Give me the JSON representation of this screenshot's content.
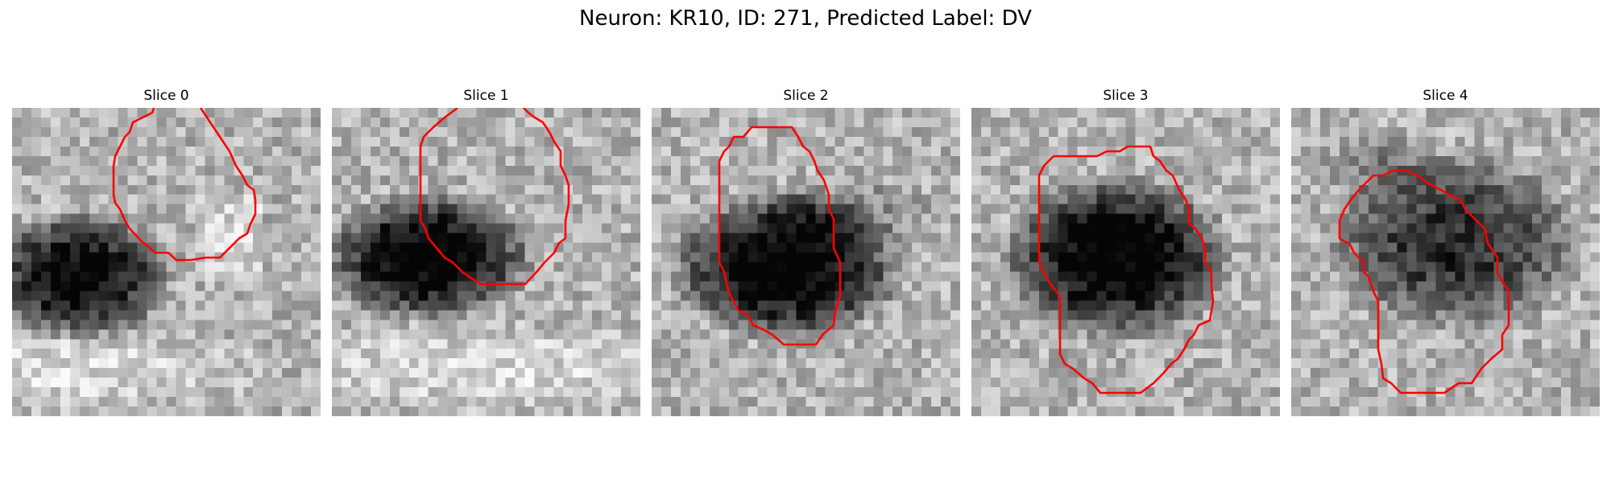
{
  "figure": {
    "title": "Neuron: KR10, ID: 271, Predicted Label: DV",
    "outline_color": "#ff0000",
    "colormap": "gray"
  },
  "panels": [
    {
      "title": "Slice 0"
    },
    {
      "title": "Slice 1"
    },
    {
      "title": "Slice 2"
    },
    {
      "title": "Slice 3"
    },
    {
      "title": "Slice 4"
    }
  ]
}
